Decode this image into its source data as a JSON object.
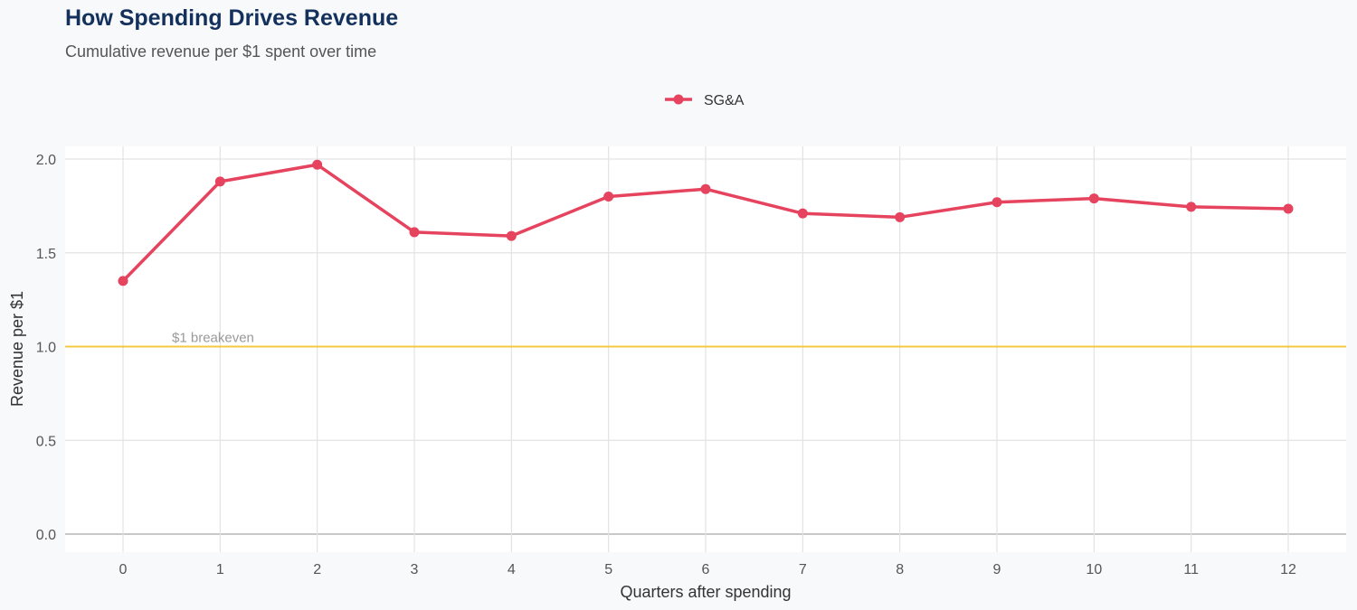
{
  "title": "How Spending Drives Revenue",
  "subtitle": "Cumulative revenue per $1 spent over time",
  "chart_data": {
    "type": "line",
    "xlabel": "Quarters after spending",
    "ylabel": "Revenue per $1",
    "x": [
      0,
      1,
      2,
      3,
      4,
      5,
      6,
      7,
      8,
      9,
      10,
      11,
      12
    ],
    "xlim": [
      -0.6,
      12.6
    ],
    "ylim": [
      -0.1,
      2.07
    ],
    "yticks": [
      0.0,
      0.5,
      1.0,
      1.5,
      2.0
    ],
    "ytick_labels": [
      "0.0",
      "0.5",
      "1.0",
      "1.5",
      "2.0"
    ],
    "xtick_labels": [
      "0",
      "1",
      "2",
      "3",
      "4",
      "5",
      "6",
      "7",
      "8",
      "9",
      "10",
      "11",
      "12"
    ],
    "grid": true,
    "legend_position": "top",
    "series": [
      {
        "name": "SG&A",
        "color": "#e5435e",
        "values": [
          1.35,
          1.88,
          1.97,
          1.61,
          1.59,
          1.8,
          1.84,
          1.71,
          1.69,
          1.77,
          1.79,
          1.745,
          1.735
        ]
      }
    ],
    "reference_line": {
      "y": 1.0,
      "label": "$1 breakeven",
      "color": "#f5c842"
    }
  }
}
